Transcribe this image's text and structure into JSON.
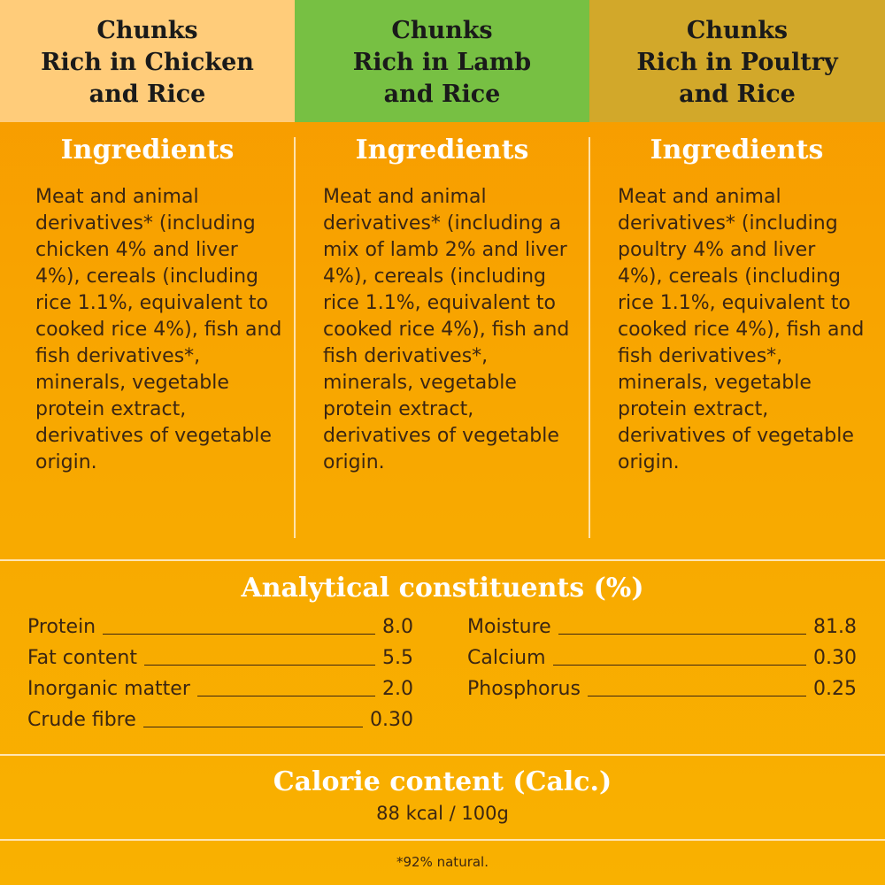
{
  "header": {
    "columns": [
      {
        "lines": [
          "Chunks",
          "Rich in Chicken",
          "and Rice"
        ],
        "color": "#ffcc7a"
      },
      {
        "lines": [
          "Chunks",
          "Rich in Lamb",
          "and Rice"
        ],
        "color": "#77c043"
      },
      {
        "lines": [
          "Chunks",
          "Rich in Poultry",
          "and Rice"
        ],
        "color": "#d2a82a"
      }
    ]
  },
  "ingredients": {
    "title": "Ingredients",
    "columns": [
      {
        "text": "Meat and animal derivatives* (including chicken 4% and liver 4%), cereals (including rice 1.1%, equivalent to cooked rice 4%), fish and fish derivatives*, minerals, vegetable protein extract, derivatives of vegetable origin."
      },
      {
        "text": "Meat and animal derivatives* (including a mix of lamb 2% and liver 4%), cereals (including rice 1.1%, equivalent to cooked rice 4%), fish and fish derivatives*, minerals, vegetable protein extract, derivatives of vegetable origin."
      },
      {
        "text": "Meat and animal derivatives* (including poultry 4% and liver 4%), cereals (including rice 1.1%, equivalent to cooked rice 4%), fish and fish derivatives*, minerals, vegetable protein extract, derivatives of vegetable origin."
      }
    ]
  },
  "analytical": {
    "title": "Analytical constituents (%)",
    "left": [
      {
        "label": "Protein",
        "value": "8.0"
      },
      {
        "label": "Fat content",
        "value": "5.5"
      },
      {
        "label": "Inorganic matter",
        "value": "2.0"
      },
      {
        "label": "Crude fibre",
        "value": "0.30"
      }
    ],
    "right": [
      {
        "label": "Moisture",
        "value": "81.8"
      },
      {
        "label": "Calcium",
        "value": "0.30"
      },
      {
        "label": "Phosphorus",
        "value": "0.25"
      }
    ]
  },
  "calorie": {
    "title": "Calorie content (Calc.)",
    "value": "88 kcal / 100g"
  },
  "footnote": "*92% natural.",
  "colors": {
    "background_top": "#f79a00",
    "background_bottom": "#f9b100",
    "heading_text": "#ffffff",
    "body_text": "#3b2612"
  }
}
